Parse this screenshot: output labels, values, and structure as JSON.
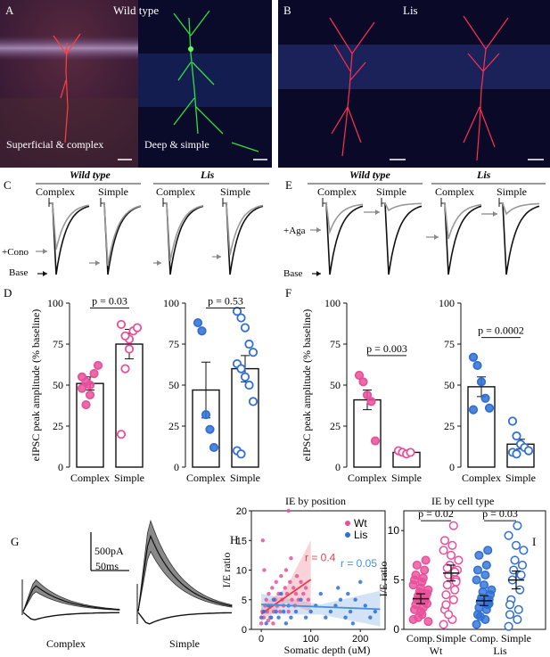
{
  "panels": {
    "A": {
      "letter": "A",
      "title": "Wild type",
      "left_caption": "Superficial & complex",
      "right_caption": "Deep & simple"
    },
    "B": {
      "letter": "B",
      "title": "Lis"
    },
    "C": {
      "letter": "C",
      "groups": [
        "Wild type",
        "Lis"
      ],
      "conds": [
        "Complex",
        "Simple"
      ],
      "arrow_labels": [
        "+Cono",
        "Base"
      ]
    },
    "E": {
      "letter": "E",
      "groups": [
        "Wild type",
        "Lis"
      ],
      "conds": [
        "Complex",
        "Simple"
      ],
      "arrow_labels": [
        "+Aga",
        "Base"
      ]
    },
    "D": {
      "letter": "D",
      "ylabel": "eIPSC peak amplitude (% baseline)"
    },
    "F": {
      "letter": "F",
      "ylabel": "eIPSC peak amplitude (% baseline)"
    },
    "G": {
      "letter": "G",
      "scale_current": "500pA",
      "scale_time": "50ms",
      "labels": [
        "Complex",
        "Simple"
      ]
    },
    "H": {
      "letter": "H",
      "title": "IE by position"
    },
    "I": {
      "letter": "I",
      "title": "IE by cell type"
    }
  },
  "colors": {
    "wt": "#e8509a",
    "lis": "#2f6fd6",
    "wt_fit": "#e0404f",
    "lis_fit": "#4a90d9",
    "gray_trace": "#999999"
  },
  "chart_data": [
    {
      "id": "D-wt",
      "type": "bar",
      "categories": [
        "Complex",
        "Simple"
      ],
      "values": [
        51,
        75
      ],
      "errors": [
        4,
        9
      ],
      "points": [
        [
          48,
          52,
          44,
          57,
          62,
          55,
          38,
          50
        ],
        [
          20,
          60,
          78,
          83,
          85,
          87,
          80,
          72
        ]
      ],
      "pvalue": "p = 0.03",
      "ylim": [
        0,
        100
      ],
      "yticks": [
        0,
        25,
        50,
        75,
        100
      ],
      "color": "wt",
      "fill": [
        "filled",
        "open"
      ]
    },
    {
      "id": "D-lis",
      "type": "bar",
      "categories": [
        "Complex",
        "Simple"
      ],
      "values": [
        47,
        60
      ],
      "errors": [
        17,
        8
      ],
      "points": [
        [
          88,
          83,
          32,
          23,
          12
        ],
        [
          95,
          91,
          85,
          75,
          70,
          63,
          60,
          55,
          50,
          40,
          10,
          8
        ]
      ],
      "pvalue": "p = 0.53",
      "ylim": [
        0,
        100
      ],
      "yticks": [
        0,
        25,
        50,
        75,
        100
      ],
      "color": "lis",
      "fill": [
        "filled",
        "open"
      ]
    },
    {
      "id": "F-wt",
      "type": "bar",
      "categories": [
        "Complex",
        "Simple"
      ],
      "values": [
        41,
        9
      ],
      "errors": [
        6,
        1
      ],
      "points": [
        [
          56,
          52,
          44,
          40,
          16
        ],
        [
          10,
          9,
          8,
          9
        ]
      ],
      "pvalue": "p = 0.003",
      "ylim": [
        0,
        100
      ],
      "yticks": [
        0,
        25,
        50,
        75,
        100
      ],
      "color": "wt",
      "fill": [
        "filled",
        "open"
      ]
    },
    {
      "id": "F-lis",
      "type": "bar",
      "categories": [
        "Complex",
        "Simple"
      ],
      "values": [
        49,
        14
      ],
      "errors": [
        6,
        3
      ],
      "points": [
        [
          67,
          62,
          52,
          42,
          36,
          35
        ],
        [
          28,
          19,
          14,
          12,
          10,
          9,
          8
        ]
      ],
      "pvalue": "p = 0.0002",
      "ylim": [
        0,
        100
      ],
      "yticks": [
        0,
        25,
        50,
        75,
        100
      ],
      "color": "lis",
      "fill": [
        "filled",
        "open"
      ]
    },
    {
      "id": "H",
      "type": "scatter",
      "xlabel": "Somatic depth (uM)",
      "ylabel": "I/E ratio",
      "xlim": [
        -20,
        250
      ],
      "ylim": [
        0,
        20
      ],
      "xticks": [
        0,
        100,
        200
      ],
      "yticks": [
        0,
        5,
        10,
        15,
        20
      ],
      "series": [
        {
          "name": "Wt",
          "color": "wt",
          "r_label": "r = 0.4",
          "points": [
            [
              2,
              3
            ],
            [
              5,
              2
            ],
            [
              8,
              4
            ],
            [
              10,
              5
            ],
            [
              12,
              3
            ],
            [
              15,
              6
            ],
            [
              18,
              2
            ],
            [
              20,
              4
            ],
            [
              22,
              7
            ],
            [
              25,
              3
            ],
            [
              28,
              5
            ],
            [
              30,
              8
            ],
            [
              32,
              4
            ],
            [
              35,
              6
            ],
            [
              38,
              3
            ],
            [
              40,
              9
            ],
            [
              42,
              5
            ],
            [
              45,
              4
            ],
            [
              48,
              7
            ],
            [
              50,
              10
            ],
            [
              52,
              6
            ],
            [
              55,
              3
            ],
            [
              58,
              8
            ],
            [
              60,
              12
            ],
            [
              62,
              5
            ],
            [
              65,
              7
            ],
            [
              68,
              4
            ],
            [
              70,
              6
            ],
            [
              72,
              9
            ],
            [
              75,
              5
            ],
            [
              80,
              8
            ],
            [
              85,
              6
            ],
            [
              90,
              7
            ],
            [
              0,
              1
            ],
            [
              3,
              15
            ],
            [
              55,
              20
            ],
            [
              95,
              5
            ],
            [
              6,
              10
            ],
            [
              14,
              1.5
            ],
            [
              24,
              1
            ]
          ],
          "fit": [
            [
              0,
              2.6
            ],
            [
              100,
              8.4
            ]
          ]
        },
        {
          "name": "Lis",
          "color": "lis",
          "r_label": "r = 0.05",
          "points": [
            [
              0,
              2
            ],
            [
              5,
              3
            ],
            [
              10,
              1
            ],
            [
              15,
              4
            ],
            [
              20,
              2
            ],
            [
              25,
              5
            ],
            [
              30,
              3
            ],
            [
              35,
              2
            ],
            [
              40,
              6
            ],
            [
              45,
              3
            ],
            [
              50,
              1
            ],
            [
              55,
              4
            ],
            [
              60,
              2
            ],
            [
              70,
              3
            ],
            [
              80,
              5
            ],
            [
              90,
              2
            ],
            [
              100,
              3
            ],
            [
              110,
              4
            ],
            [
              120,
              6
            ],
            [
              130,
              2
            ],
            [
              140,
              3
            ],
            [
              150,
              4
            ],
            [
              160,
              5
            ],
            [
              170,
              2
            ],
            [
              180,
              3
            ],
            [
              190,
              5
            ],
            [
              200,
              8
            ],
            [
              210,
              4
            ],
            [
              220,
              2
            ],
            [
              230,
              3
            ],
            [
              175,
              6
            ],
            [
              185,
              1
            ],
            [
              155,
              7
            ]
          ],
          "fit": [
            [
              0,
              4.2
            ],
            [
              240,
              3.4
            ]
          ]
        }
      ]
    },
    {
      "id": "I",
      "type": "scatter",
      "xlabel": "",
      "ylabel": "I/E ratio",
      "categories": [
        "Comp.",
        "Simple",
        "Comp.",
        "Simple"
      ],
      "group_labels": [
        "Wt",
        "Lis"
      ],
      "ylim": [
        0,
        12
      ],
      "yticks": [
        0,
        5,
        10
      ],
      "means": [
        3.1,
        5.7,
        2.9,
        5.0
      ],
      "sems": [
        0.5,
        0.8,
        0.5,
        0.9
      ],
      "pvalues": [
        "p = 0.02",
        "p = 0.03"
      ],
      "points": [
        [
          1.0,
          1.5,
          2.0,
          2.2,
          2.5,
          2.8,
          3.0,
          3.2,
          3.4,
          3.6,
          3.8,
          4.0,
          4.2,
          4.5,
          4.8,
          5.0,
          5.2,
          5.5,
          6.0,
          6.5,
          7.0,
          1.2,
          2.6,
          3.1,
          0.8,
          1.8
        ],
        [
          0.5,
          1.0,
          2.0,
          3.0,
          3.5,
          4.0,
          4.5,
          5.0,
          5.5,
          6.0,
          6.5,
          7.0,
          7.5,
          8.0,
          8.5,
          9.0,
          10.5,
          2.5,
          5.8,
          6.2,
          4.8,
          1.5
        ],
        [
          0.5,
          1.0,
          1.5,
          2.0,
          2.2,
          2.5,
          2.8,
          3.0,
          3.2,
          3.5,
          3.8,
          4.0,
          4.5,
          5.0,
          5.5,
          6.0,
          6.5,
          7.5,
          8.0,
          1.3,
          2.6
        ],
        [
          0.3,
          1.0,
          1.5,
          2.0,
          3.0,
          4.0,
          5.0,
          5.5,
          6.0,
          6.5,
          7.0,
          8.0,
          8.5,
          9.5,
          10.5,
          2.5
        ]
      ],
      "colors": [
        "wt",
        "wt",
        "lis",
        "lis"
      ],
      "fill": [
        "filled",
        "open",
        "filled",
        "open"
      ]
    }
  ]
}
